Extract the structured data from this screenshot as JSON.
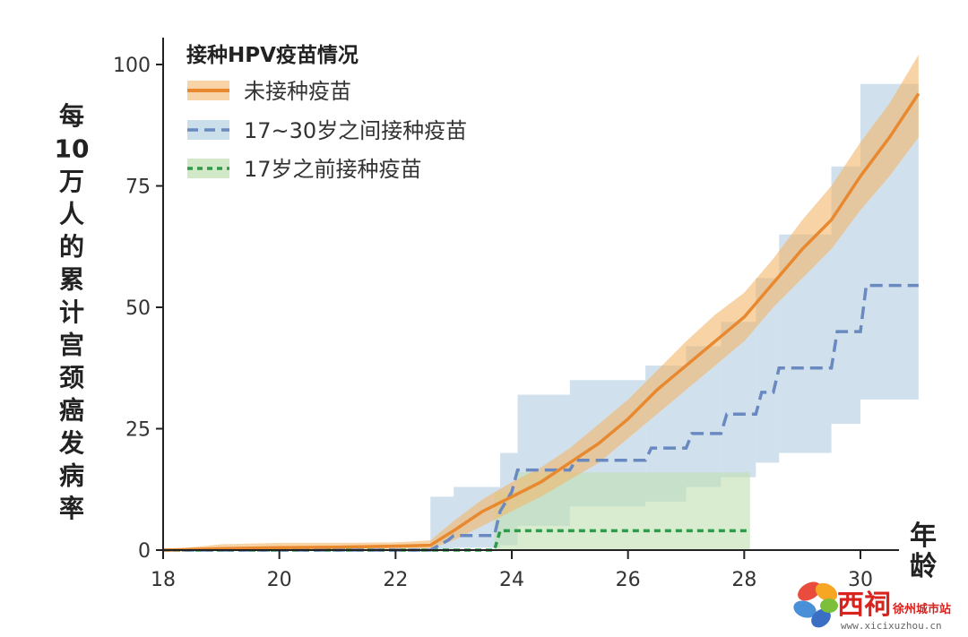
{
  "chart_data": {
    "type": "line",
    "ylabel": "每10万人的累计宫颈癌发病率",
    "xlabel": "年龄",
    "xlim": [
      18,
      31
    ],
    "ylim": [
      0,
      100
    ],
    "x_ticks": [
      "18",
      "20",
      "22",
      "24",
      "26",
      "28",
      "30"
    ],
    "y_ticks": [
      "0",
      "25",
      "50",
      "75",
      "100"
    ],
    "legend_title": "接种HPV疫苗情况",
    "legend_position": "top-left",
    "series": [
      {
        "name": "未接种疫苗",
        "style": "solid",
        "color": "#e8892f",
        "band_color": "#f3b66b",
        "x": [
          18,
          19,
          20,
          21,
          22,
          22.6,
          23,
          23.5,
          24,
          24.5,
          25,
          25.5,
          26,
          26.5,
          27,
          27.5,
          28,
          28.5,
          29,
          29.5,
          30,
          30.5,
          31
        ],
        "y": [
          0,
          0.3,
          0.5,
          0.6,
          0.8,
          1,
          4,
          8,
          11,
          14,
          18,
          22,
          27,
          33,
          38,
          43,
          48,
          55,
          62,
          68,
          77,
          85,
          94
        ],
        "ci_lower": [
          0,
          0,
          0,
          0,
          0.2,
          0.3,
          2,
          5,
          8,
          11,
          14.5,
          18,
          23,
          28,
          33,
          38,
          43,
          50,
          56,
          62,
          70,
          77,
          85
        ],
        "ci_upper": [
          0,
          1.2,
          1.5,
          1.5,
          1.6,
          2,
          6,
          10.5,
          14,
          17,
          21,
          26,
          31,
          37,
          43,
          48.5,
          53,
          60,
          68,
          75,
          84,
          92,
          102
        ]
      },
      {
        "name": "17~30岁之间接种疫苗",
        "style": "dashed",
        "color": "#6a89c0",
        "band_color": "#a9c9de",
        "steps": [
          [
            18,
            0
          ],
          [
            22.6,
            0
          ],
          [
            22.9,
            2
          ],
          [
            23,
            3
          ],
          [
            23.7,
            3
          ],
          [
            23.8,
            8
          ],
          [
            24,
            12
          ],
          [
            24.1,
            16.5
          ],
          [
            25,
            16.5
          ],
          [
            25.1,
            18.5
          ],
          [
            26.3,
            18.5
          ],
          [
            26.4,
            21
          ],
          [
            27,
            21
          ],
          [
            27.1,
            24
          ],
          [
            27.6,
            24
          ],
          [
            27.7,
            28
          ],
          [
            28.2,
            28
          ],
          [
            28.3,
            32.5
          ],
          [
            28.5,
            32.5
          ],
          [
            28.6,
            37.5
          ],
          [
            29.5,
            37.5
          ],
          [
            29.6,
            45
          ],
          [
            30,
            45
          ],
          [
            30.1,
            54.5
          ],
          [
            31,
            54.5
          ]
        ],
        "ci_steps": [
          [
            22.6,
            0,
            11
          ],
          [
            23.0,
            0.5,
            13
          ],
          [
            23.8,
            1,
            20
          ],
          [
            24.1,
            5,
            32
          ],
          [
            25.0,
            9,
            35
          ],
          [
            26.3,
            10,
            38
          ],
          [
            27.0,
            13,
            42
          ],
          [
            27.6,
            15,
            47
          ],
          [
            28.2,
            18,
            56
          ],
          [
            28.6,
            20,
            65
          ],
          [
            29.5,
            26,
            79
          ],
          [
            30.0,
            31,
            96
          ],
          [
            31,
            31,
            96
          ]
        ]
      },
      {
        "name": "17岁之前接种疫苗",
        "style": "dotted",
        "color": "#2e9a4a",
        "band_color": "#bfe0b0",
        "steps": [
          [
            18,
            0
          ],
          [
            23.7,
            0
          ],
          [
            23.8,
            4
          ],
          [
            28.1,
            4
          ]
        ],
        "ci_steps": [
          [
            23.7,
            0,
            12
          ],
          [
            24.1,
            0,
            16
          ],
          [
            28.1,
            0,
            16
          ]
        ]
      }
    ]
  },
  "watermark": {
    "brand": "西祠",
    "site_name": "徐州城市站",
    "url": "www.xicixuzhou.cn"
  }
}
